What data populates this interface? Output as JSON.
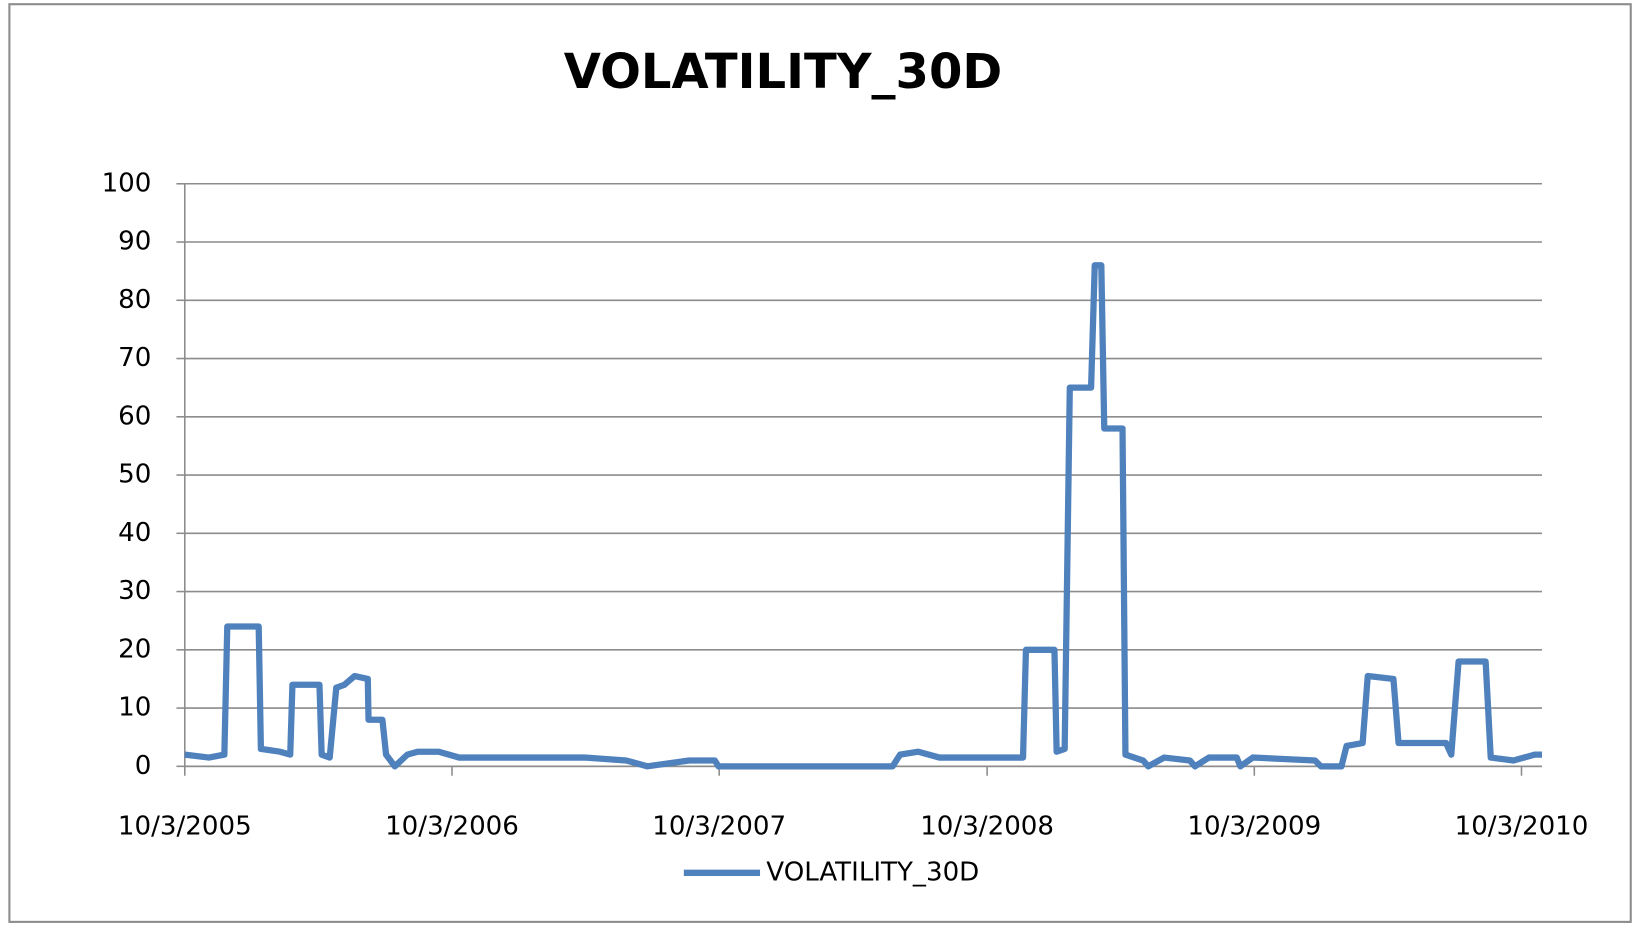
{
  "chart_data": {
    "type": "line",
    "title": "VOLATILITY_30D",
    "x": [
      "2005-10-03",
      "2005-11-05",
      "2005-11-26",
      "2005-11-30",
      "2006-01-12",
      "2006-01-15",
      "2006-02-10",
      "2006-02-24",
      "2006-02-27",
      "2006-04-05",
      "2006-04-08",
      "2006-04-19",
      "2006-04-28",
      "2006-05-09",
      "2006-05-23",
      "2006-06-10",
      "2006-06-11",
      "2006-06-30",
      "2006-07-05",
      "2006-07-17",
      "2006-08-03",
      "2006-08-17",
      "2006-09-15",
      "2006-10-13",
      "2006-12-09",
      "2007-02-18",
      "2007-04-02",
      "2007-05-29",
      "2007-06-27",
      "2007-08-23",
      "2007-09-27",
      "2007-10-02",
      "2008-05-27",
      "2008-06-06",
      "2008-07-01",
      "2008-07-30",
      "2008-09-25",
      "2008-11-21",
      "2008-11-25",
      "2009-01-03",
      "2009-01-06",
      "2009-01-17",
      "2009-01-24",
      "2009-02-22",
      "2009-02-27",
      "2009-03-08",
      "2009-03-12",
      "2009-04-06",
      "2009-04-10",
      "2009-05-04",
      "2009-05-11",
      "2009-06-02",
      "2009-07-07",
      "2009-07-14",
      "2009-08-02",
      "2009-09-09",
      "2009-09-14",
      "2009-10-01",
      "2009-12-25",
      "2010-01-02",
      "2010-01-30",
      "2010-02-06",
      "2010-02-28",
      "2010-03-07",
      "2010-04-11",
      "2010-04-18",
      "2010-05-10",
      "2010-06-22",
      "2010-06-29",
      "2010-07-09",
      "2010-08-15",
      "2010-08-22",
      "2010-09-22",
      "2010-10-21",
      "2010-10-31"
    ],
    "series": [
      {
        "name": "VOLATILITY_30D",
        "color": "#4f81bd",
        "values": [
          2,
          1.5,
          2,
          24,
          24,
          3,
          2.5,
          2,
          14,
          14,
          2,
          1.5,
          13.5,
          14,
          15.5,
          15,
          8,
          8,
          2,
          0,
          2,
          2.5,
          2.5,
          1.5,
          1.5,
          1.5,
          1.5,
          1,
          0,
          1,
          1,
          0,
          0,
          2,
          2.5,
          1.5,
          1.5,
          1.5,
          20,
          20,
          2.5,
          3,
          65,
          65,
          86,
          86,
          58,
          58,
          2,
          1,
          0,
          1.5,
          1,
          0,
          1.5,
          1.5,
          0,
          1.5,
          1,
          0,
          0,
          3.5,
          4,
          15.5,
          15,
          4,
          4,
          4,
          2,
          18,
          18,
          1.5,
          1,
          2,
          2
        ]
      }
    ],
    "xlim": [
      "2005-10-03",
      "2010-10-31"
    ],
    "xticks": [
      {
        "value": "2005-10-03",
        "label": "10/3/2005"
      },
      {
        "value": "2006-10-03",
        "label": "10/3/2006"
      },
      {
        "value": "2007-10-03",
        "label": "10/3/2007"
      },
      {
        "value": "2008-10-03",
        "label": "10/3/2008"
      },
      {
        "value": "2009-10-03",
        "label": "10/3/2009"
      },
      {
        "value": "2010-10-03",
        "label": "10/3/2010"
      }
    ],
    "ylim": [
      0,
      100
    ],
    "yticks": [
      0,
      10,
      20,
      30,
      40,
      50,
      60,
      70,
      80,
      90,
      100
    ],
    "grid": true,
    "legend": "bottom"
  }
}
